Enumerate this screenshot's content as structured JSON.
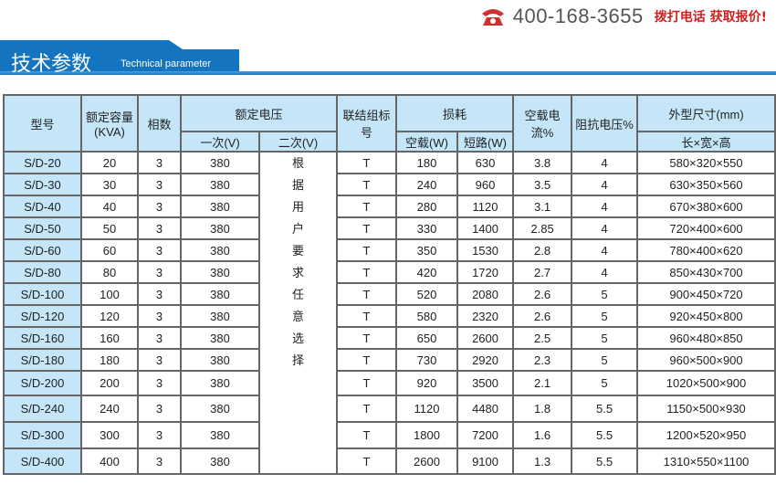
{
  "header": {
    "phone": "400-168-3655",
    "slogan": "拨打电话 获取报价!",
    "icon": "phone-icon"
  },
  "banner": {
    "title_cn": "技术参数",
    "title_en": "Technical parameter"
  },
  "table": {
    "headers": {
      "model": "型号",
      "capacity": "额定容量(KVA)",
      "phase": "相数",
      "voltage": "额定电压",
      "primary": "一次(V)",
      "secondary": "二次(V)",
      "connection": "联结组标号",
      "loss": "损耗",
      "no_load": "空载(W)",
      "short_circuit": "短路(W)",
      "no_load_current": "空载电流%",
      "impedance": "阻抗电压%",
      "dimensions": "外型尺寸(mm)",
      "dim_sub": "长×宽×高"
    },
    "secondary_note": [
      "根",
      "据",
      "用",
      "户",
      "要",
      "求",
      "任",
      "意",
      "选",
      "择"
    ],
    "rows": [
      [
        "S/D-20",
        "20",
        "3",
        "380",
        "T",
        "180",
        "630",
        "3.8",
        "4",
        "580×320×550"
      ],
      [
        "S/D-30",
        "30",
        "3",
        "380",
        "T",
        "240",
        "960",
        "3.5",
        "4",
        "630×350×560"
      ],
      [
        "S/D-40",
        "40",
        "3",
        "380",
        "T",
        "280",
        "1120",
        "3.1",
        "4",
        "670×380×600"
      ],
      [
        "S/D-50",
        "50",
        "3",
        "380",
        "T",
        "330",
        "1400",
        "2.85",
        "4",
        "720×400×600"
      ],
      [
        "S/D-60",
        "60",
        "3",
        "380",
        "T",
        "350",
        "1530",
        "2.8",
        "4",
        "780×400×620"
      ],
      [
        "S/D-80",
        "80",
        "3",
        "380",
        "T",
        "420",
        "1720",
        "2.7",
        "4",
        "850×430×700"
      ],
      [
        "S/D-100",
        "100",
        "3",
        "380",
        "T",
        "520",
        "2080",
        "2.6",
        "5",
        "900×450×720"
      ],
      [
        "S/D-120",
        "120",
        "3",
        "380",
        "T",
        "580",
        "2320",
        "2.6",
        "5",
        "920×450×800"
      ],
      [
        "S/D-160",
        "160",
        "3",
        "380",
        "T",
        "650",
        "2600",
        "2.5",
        "5",
        "960×480×850"
      ],
      [
        "S/D-180",
        "180",
        "3",
        "380",
        "T",
        "730",
        "2920",
        "2.3",
        "5",
        "960×500×900"
      ],
      [
        "S/D-200",
        "200",
        "3",
        "380",
        "T",
        "920",
        "3500",
        "2.1",
        "5",
        "1020×500×900"
      ],
      [
        "S/D-240",
        "240",
        "3",
        "380",
        "T",
        "1120",
        "4480",
        "1.8",
        "5.5",
        "1150×500×930"
      ],
      [
        "S/D-300",
        "300",
        "3",
        "380",
        "T",
        "1800",
        "7200",
        "1.6",
        "5.5",
        "1200×520×950"
      ],
      [
        "S/D-400",
        "400",
        "3",
        "380",
        "T",
        "2600",
        "9100",
        "1.3",
        "5.5",
        "1310×550×1100"
      ]
    ]
  }
}
